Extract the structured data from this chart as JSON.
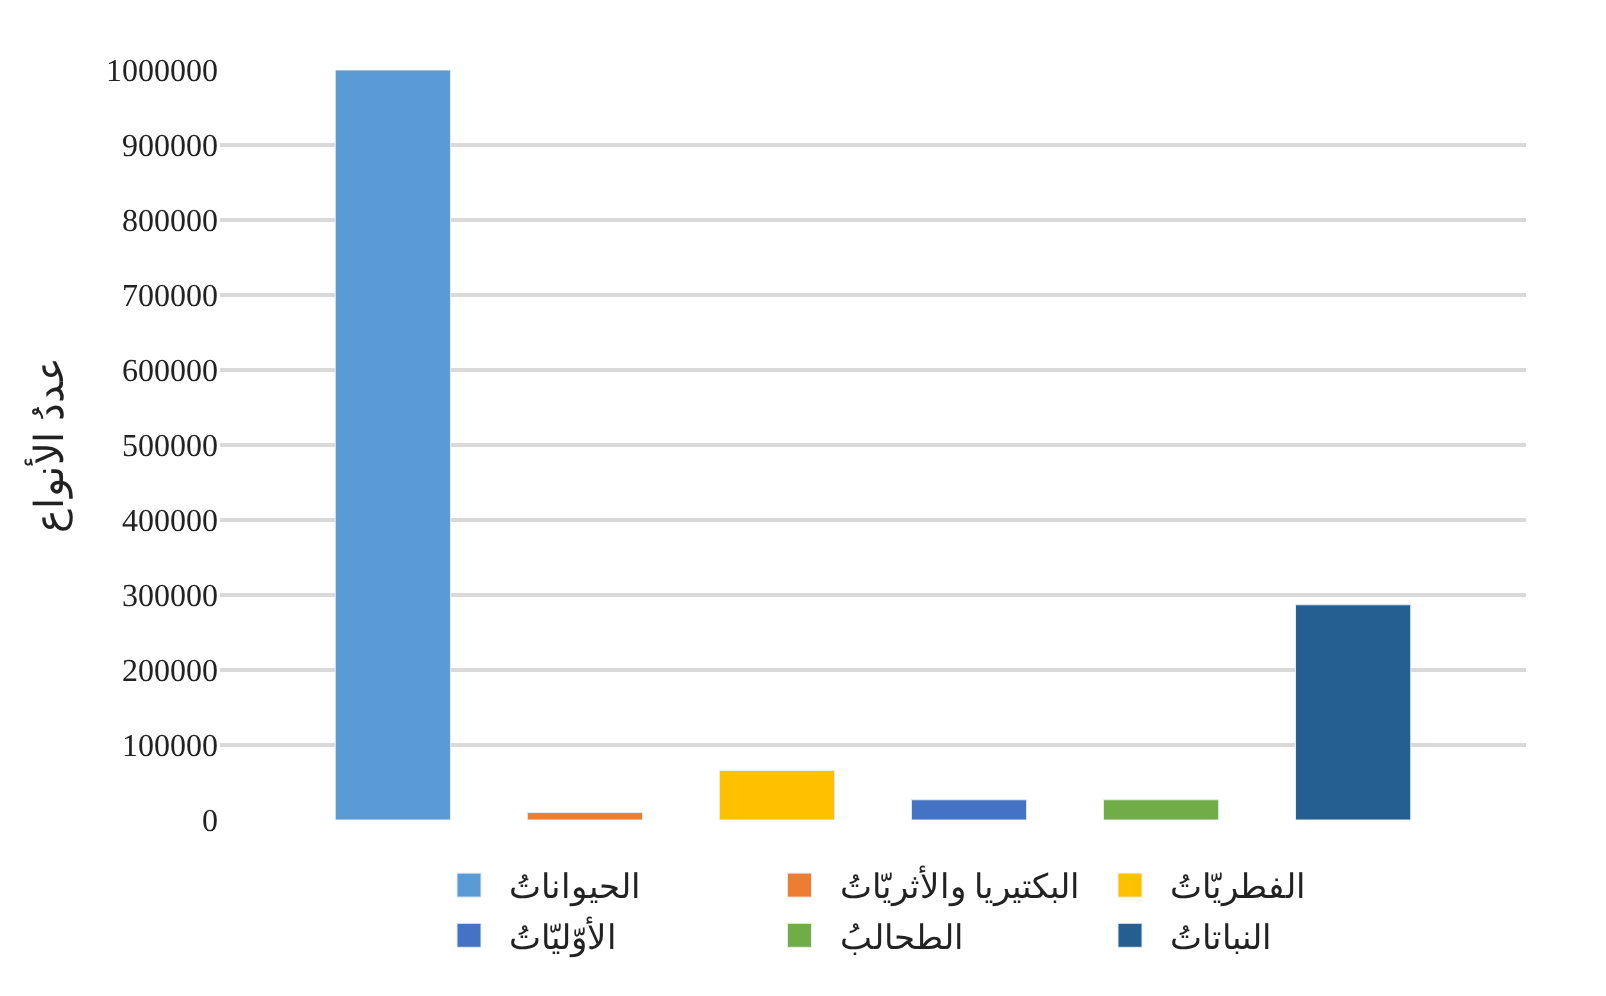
{
  "chart_data": {
    "type": "bar",
    "ylabel": "عددُ الأنواع",
    "categories": [
      null,
      null,
      null,
      null,
      null,
      null
    ],
    "series": [
      {
        "name": "الحيواناتُ",
        "color": "#5b9bd5",
        "values": [
          1000000,
          null,
          null,
          null,
          null,
          null
        ]
      },
      {
        "name": "البكتيريا والأثريّاتُ",
        "color": "#ed7d31",
        "values": [
          null,
          10000,
          null,
          null,
          null,
          null
        ]
      },
      {
        "name": "الفطريّاتُ",
        "color": "#ffc000",
        "values": [
          null,
          null,
          66000,
          null,
          null,
          null
        ]
      },
      {
        "name": "الأوّليّاتُ",
        "color": "#4472c4",
        "values": [
          null,
          null,
          null,
          27000,
          null,
          null
        ]
      },
      {
        "name": "الطحالبُ",
        "color": "#70ad47",
        "values": [
          null,
          null,
          null,
          null,
          27000,
          null
        ]
      },
      {
        "name": "النباتاتُ",
        "color": "#255e91",
        "values": [
          null,
          null,
          null,
          null,
          null,
          287000
        ]
      }
    ],
    "ylim": [
      0,
      1000000
    ],
    "yticks": [
      0,
      100000,
      200000,
      300000,
      400000,
      500000,
      600000,
      700000,
      800000,
      900000,
      1000000
    ],
    "grid": "y",
    "legend": "bottom"
  }
}
